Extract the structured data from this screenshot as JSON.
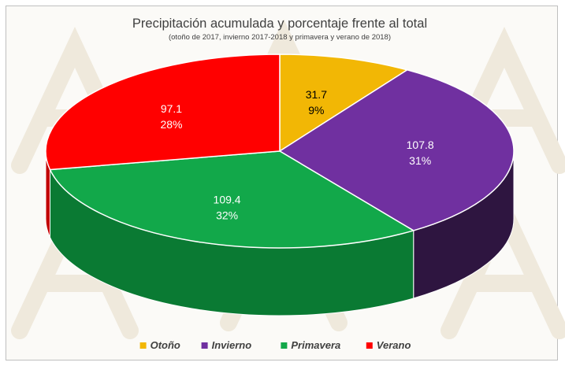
{
  "chart_data": {
    "type": "pie",
    "title": "Precipitación acumulada y porcentaje frente al total",
    "subtitle": "(otoño de 2017, invierno 2017-2018 y primavera y verano de 2018)",
    "legend_position": "bottom",
    "slices": [
      {
        "name": "Otoño",
        "value": 31.7,
        "value_label": "31.7",
        "percent_label": "9%",
        "color": "#f2b705",
        "side_color": "#b08500",
        "label_color": "#000000"
      },
      {
        "name": "Invierno",
        "value": 107.8,
        "value_label": "107.8",
        "percent_label": "31%",
        "color": "#7030a0",
        "side_color": "#2e1540",
        "label_color": "#ffffff"
      },
      {
        "name": "Primavera",
        "value": 109.4,
        "value_label": "109.4",
        "percent_label": "32%",
        "color": "#12a84a",
        "side_color": "#0a7a33",
        "label_color": "#ffffff"
      },
      {
        "name": "Verano",
        "value": 97.1,
        "value_label": "97.1",
        "percent_label": "28%",
        "color": "#ff0000",
        "side_color": "#c20000",
        "label_color": "#ffffff"
      }
    ]
  }
}
